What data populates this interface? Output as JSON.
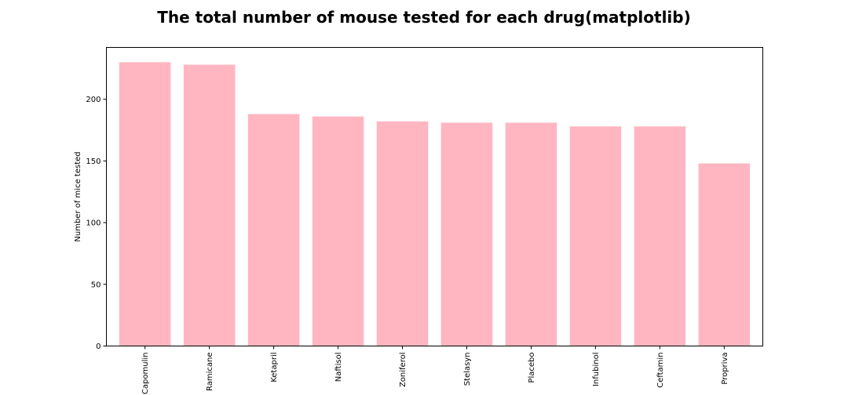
{
  "chart_data": {
    "type": "bar",
    "title": "The total number of mouse tested for each drug(matplotlib)",
    "xlabel": "",
    "ylabel": "Number of mice tested",
    "categories": [
      "Capomulin",
      "Ramicane",
      "Ketapril",
      "Naftisol",
      "Zoniferol",
      "Stelasyn",
      "Placebo",
      "Infubinol",
      "Ceftamin",
      "Propriva"
    ],
    "values": [
      230,
      228,
      188,
      186,
      182,
      181,
      181,
      178,
      178,
      148
    ],
    "ylim": [
      0,
      242
    ],
    "yticks": [
      0,
      50,
      100,
      150,
      200
    ],
    "bar_color": "#ffb6c1",
    "xtick_rotation": "vertical",
    "grid": false,
    "legend": "none"
  }
}
